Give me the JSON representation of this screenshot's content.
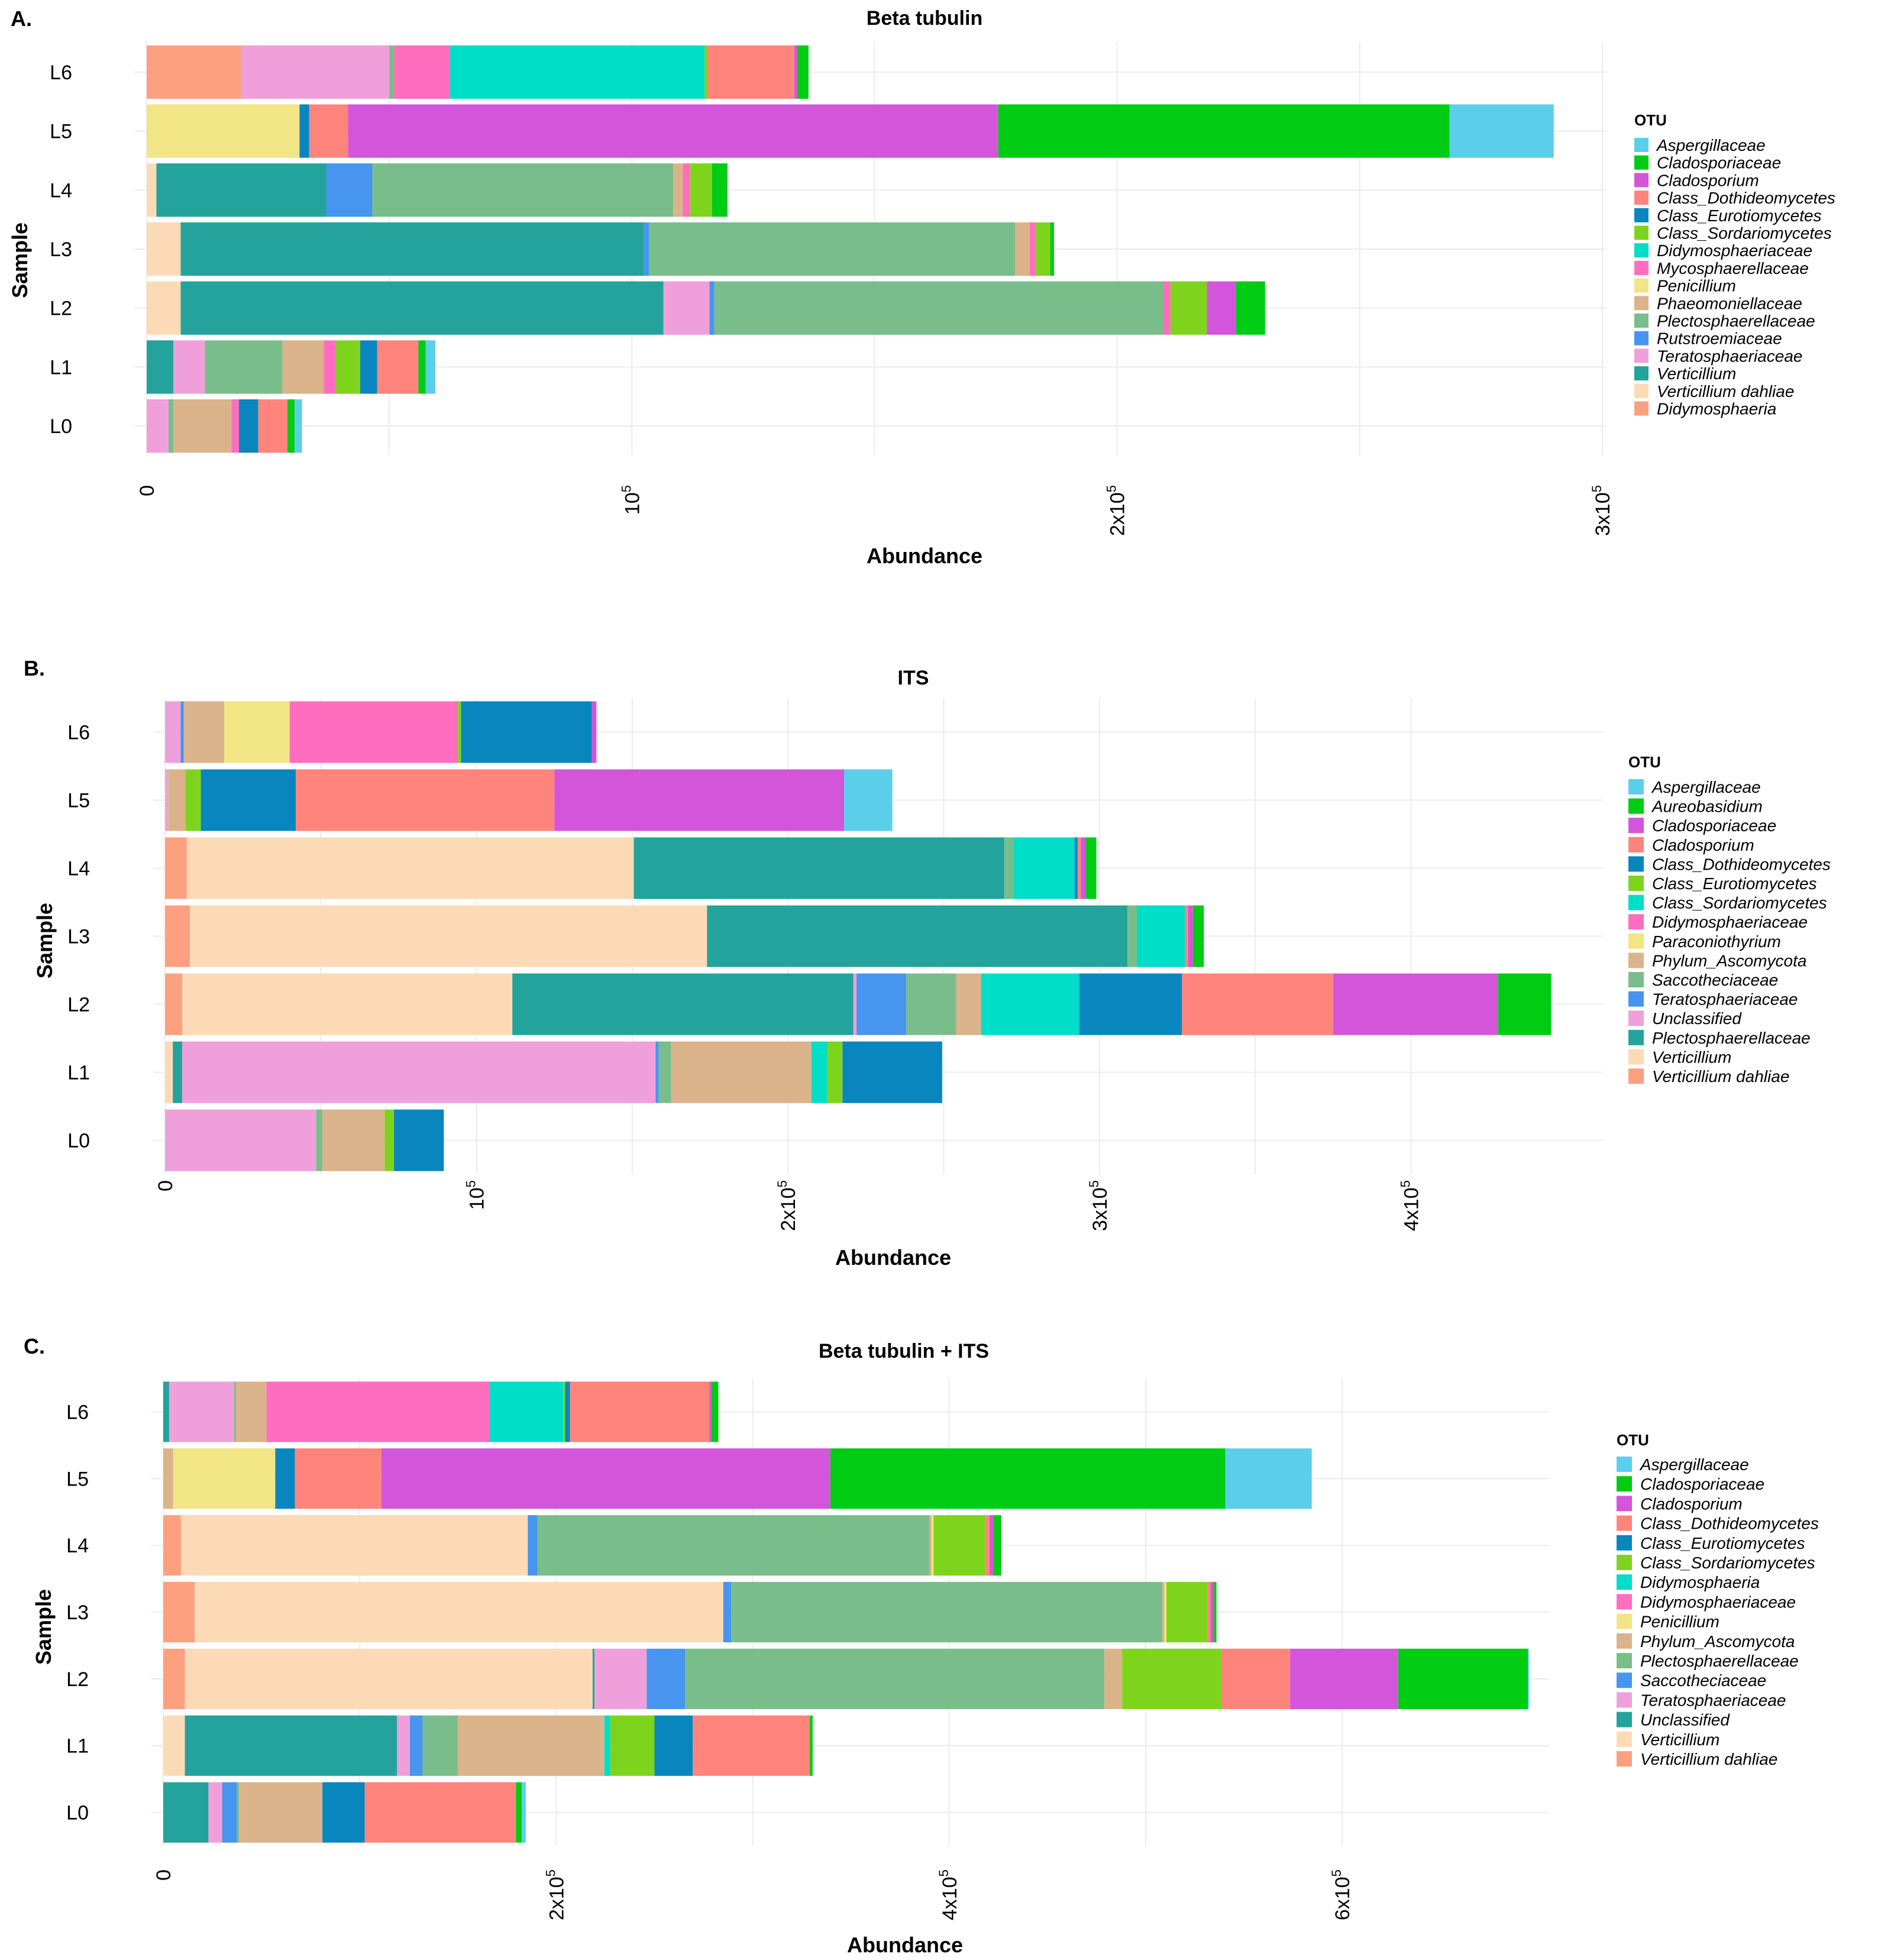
{
  "figure": {
    "panels": [
      {
        "letter": "A."
      },
      {
        "letter": "B."
      },
      {
        "letter": "C."
      }
    ]
  },
  "chart_data": [
    {
      "type": "bar",
      "orientation": "horizontal",
      "stacked": true,
      "title": "Beta tubulin",
      "xlabel": "Abundance",
      "ylabel": "Sample",
      "xlim": [
        0,
        300000
      ],
      "xticks": [
        {
          "value": 0,
          "label": "0",
          "exp": ""
        },
        {
          "value": 100000,
          "label": "10",
          "exp": "5"
        },
        {
          "value": 200000,
          "label": "2x10",
          "exp": "5"
        },
        {
          "value": 300000,
          "label": "3x10",
          "exp": "5"
        }
      ],
      "categories": [
        "L6",
        "L5",
        "L4",
        "L3",
        "L2",
        "L1",
        "L0"
      ],
      "legend_title": "OTU",
      "legend_position": "right",
      "series": [
        {
          "name": "Aspergillaceae",
          "color": "#5BCFEA",
          "values": [
            0,
            21500,
            0,
            0,
            0,
            2000,
            1500
          ]
        },
        {
          "name": "Cladosporiaceae",
          "color": "#00CC14",
          "values": [
            2300,
            93000,
            3200,
            800,
            6000,
            1500,
            1500
          ]
        },
        {
          "name": "Cladosporium",
          "color": "#D355DA",
          "values": [
            600,
            134000,
            0,
            0,
            6000,
            0,
            0
          ]
        },
        {
          "name": "Class_Dothideomycetes",
          "color": "#FF847C",
          "values": [
            18000,
            8000,
            0,
            0,
            0,
            8500,
            6000
          ]
        },
        {
          "name": "Class_Eurotiomycetes",
          "color": "#0A86BE",
          "values": [
            0,
            2000,
            0,
            0,
            0,
            3500,
            4000
          ]
        },
        {
          "name": "Class_Sordariomycetes",
          "color": "#7ED41C",
          "values": [
            500,
            0,
            4500,
            3000,
            7500,
            5000,
            0
          ]
        },
        {
          "name": "Didymosphaeriaceae",
          "color": "#00DDC8",
          "values": [
            52500,
            0,
            0,
            0,
            0,
            0,
            0
          ]
        },
        {
          "name": "Mycosphaerellaceae",
          "color": "#FF6EBE",
          "values": [
            11500,
            0,
            1500,
            1200,
            1500,
            2500,
            1500
          ]
        },
        {
          "name": "Penicillium",
          "color": "#F1E585",
          "values": [
            0,
            31500,
            0,
            0,
            0,
            0,
            0
          ]
        },
        {
          "name": "Phaeomoniellaceae",
          "color": "#DBB38A",
          "values": [
            0,
            0,
            2000,
            3000,
            0,
            8500,
            12000
          ]
        },
        {
          "name": "Plectosphaerellaceae",
          "color": "#79BE8A",
          "values": [
            1000,
            0,
            62000,
            75500,
            92500,
            16000,
            1000
          ]
        },
        {
          "name": "Rutstroemiaceae",
          "color": "#4795EE",
          "values": [
            0,
            0,
            9500,
            1000,
            1000,
            0,
            0
          ]
        },
        {
          "name": "Teratosphaeriaceae",
          "color": "#EFA0DA",
          "values": [
            30500,
            0,
            0,
            0,
            9500,
            6500,
            4500
          ]
        },
        {
          "name": "Verticillium",
          "color": "#24A39D",
          "values": [
            0,
            0,
            35000,
            95500,
            99500,
            5500,
            0
          ]
        },
        {
          "name": "Verticillium dahliae",
          "color": "#FDDAB6",
          "values": [
            0,
            0,
            2000,
            7000,
            7000,
            0,
            0
          ]
        },
        {
          "name": "Didymosphaeria",
          "color": "#FDA07F",
          "values": [
            19500,
            0,
            0,
            0,
            0,
            0,
            0
          ]
        }
      ]
    },
    {
      "type": "bar",
      "orientation": "horizontal",
      "stacked": true,
      "title": "ITS",
      "xlabel": "Abundance",
      "ylabel": "Sample",
      "xlim": [
        0,
        450000
      ],
      "xticks": [
        {
          "value": 0,
          "label": "0",
          "exp": ""
        },
        {
          "value": 100000,
          "label": "10",
          "exp": "5"
        },
        {
          "value": 200000,
          "label": "2x10",
          "exp": "5"
        },
        {
          "value": 300000,
          "label": "3x10",
          "exp": "5"
        },
        {
          "value": 400000,
          "label": "4x10",
          "exp": "5"
        }
      ],
      "categories": [
        "L6",
        "L5",
        "L4",
        "L3",
        "L2",
        "L1",
        "L0"
      ],
      "legend_title": "OTU",
      "legend_position": "right",
      "series": [
        {
          "name": "Aspergillaceae",
          "color": "#5BCFEA",
          "values": [
            0,
            15500,
            0,
            0,
            0,
            0,
            0
          ]
        },
        {
          "name": "Aureobasidium",
          "color": "#00CC14",
          "values": [
            0,
            0,
            3500,
            3500,
            17000,
            0,
            0
          ]
        },
        {
          "name": "Cladosporiaceae",
          "color": "#D355DA",
          "values": [
            1500,
            93000,
            1500,
            1500,
            53000,
            0,
            0
          ]
        },
        {
          "name": "Cladosporium",
          "color": "#FF847C",
          "values": [
            0,
            83000,
            1000,
            1000,
            48500,
            0,
            0
          ]
        },
        {
          "name": "Class_Dothideomycetes",
          "color": "#0A86BE",
          "values": [
            42000,
            30500,
            1000,
            0,
            33000,
            32000,
            16000
          ]
        },
        {
          "name": "Class_Eurotiomycetes",
          "color": "#7ED41C",
          "values": [
            1000,
            5000,
            0,
            0,
            0,
            5000,
            3000
          ]
        },
        {
          "name": "Class_Sordariomycetes",
          "color": "#00DDC8",
          "values": [
            0,
            0,
            19500,
            15500,
            31500,
            5000,
            0
          ]
        },
        {
          "name": "Didymosphaeriaceae",
          "color": "#FF6EBE",
          "values": [
            54000,
            0,
            0,
            0,
            0,
            0,
            0
          ]
        },
        {
          "name": "Paraconiothyrium",
          "color": "#F1E585",
          "values": [
            21000,
            0,
            0,
            0,
            0,
            0,
            0
          ]
        },
        {
          "name": "Phylum_Ascomycota",
          "color": "#DBB38A",
          "values": [
            13000,
            5500,
            0,
            0,
            8000,
            45000,
            20000
          ]
        },
        {
          "name": "Saccotheciaceae",
          "color": "#79BE8A",
          "values": [
            0,
            0,
            3000,
            3000,
            16000,
            4000,
            2000
          ]
        },
        {
          "name": "Teratosphaeriaceae",
          "color": "#4795EE",
          "values": [
            1000,
            0,
            0,
            0,
            16000,
            1000,
            0
          ]
        },
        {
          "name": "Unclassified",
          "color": "#EFA0DA",
          "values": [
            5000,
            1000,
            0,
            0,
            1000,
            152000,
            48500
          ]
        },
        {
          "name": "Plectosphaerellaceae",
          "color": "#24A39D",
          "values": [
            0,
            0,
            119000,
            135000,
            109500,
            3000,
            0
          ]
        },
        {
          "name": "Verticillium",
          "color": "#FDDAB6",
          "values": [
            0,
            0,
            143500,
            166000,
            106000,
            2500,
            0
          ]
        },
        {
          "name": "Verticillium dahliae",
          "color": "#FDA07F",
          "values": [
            0,
            0,
            7000,
            8000,
            5500,
            0,
            0
          ]
        }
      ]
    },
    {
      "type": "bar",
      "orientation": "horizontal",
      "stacked": true,
      "title": "Beta tubulin + ITS",
      "xlabel": "Abundance",
      "ylabel": "Sample",
      "xlim": [
        0,
        700000
      ],
      "xticks": [
        {
          "value": 0,
          "label": "0",
          "exp": ""
        },
        {
          "value": 200000,
          "label": "2x10",
          "exp": "5"
        },
        {
          "value": 400000,
          "label": "4x10",
          "exp": "5"
        },
        {
          "value": 600000,
          "label": "6x10",
          "exp": "5"
        }
      ],
      "categories": [
        "L6",
        "L5",
        "L4",
        "L3",
        "L2",
        "L1",
        "L0"
      ],
      "legend_title": "OTU",
      "legend_position": "right",
      "series": [
        {
          "name": "Aspergillaceae",
          "color": "#5BCFEA",
          "values": [
            0,
            44000,
            0,
            0,
            500,
            0,
            2000
          ]
        },
        {
          "name": "Cladosporiaceae",
          "color": "#00CC14",
          "values": [
            3500,
            201000,
            4000,
            1500,
            66000,
            1500,
            3000
          ]
        },
        {
          "name": "Cladosporium",
          "color": "#D355DA",
          "values": [
            1000,
            228500,
            2000,
            1500,
            55000,
            0,
            0
          ]
        },
        {
          "name": "Class_Dothideomycetes",
          "color": "#FF847C",
          "values": [
            71000,
            44000,
            2000,
            1500,
            35000,
            59500,
            77000
          ]
        },
        {
          "name": "Class_Eurotiomycetes",
          "color": "#0A86BE",
          "values": [
            2500,
            10000,
            0,
            0,
            0,
            19500,
            21500
          ]
        },
        {
          "name": "Class_Sordariomycetes",
          "color": "#7ED41C",
          "values": [
            1000,
            0,
            26500,
            21000,
            50500,
            22500,
            0
          ]
        },
        {
          "name": "Didymosphaeria",
          "color": "#00DDC8",
          "values": [
            37500,
            0,
            0,
            0,
            0,
            3000,
            0
          ]
        },
        {
          "name": "Didymosphaeriaceae",
          "color": "#FF6EBE",
          "values": [
            113500,
            0,
            0,
            0,
            0,
            0,
            0
          ]
        },
        {
          "name": "Penicillium",
          "color": "#F1E585",
          "values": [
            0,
            52000,
            1000,
            1000,
            0,
            0,
            0
          ]
        },
        {
          "name": "Phylum_Ascomycota",
          "color": "#DBB38A",
          "values": [
            15500,
            5000,
            1000,
            1000,
            9000,
            74500,
            42500
          ]
        },
        {
          "name": "Plectosphaerellaceae",
          "color": "#79BE8A",
          "values": [
            1000,
            0,
            199500,
            219500,
            213500,
            18000,
            1000
          ]
        },
        {
          "name": "Saccotheciaceae",
          "color": "#4795EE",
          "values": [
            0,
            0,
            5000,
            4000,
            19500,
            6500,
            7500
          ]
        },
        {
          "name": "Teratosphaeriaceae",
          "color": "#EFA0DA",
          "values": [
            33000,
            0,
            0,
            0,
            26500,
            6500,
            7000
          ]
        },
        {
          "name": "Unclassified",
          "color": "#24A39D",
          "values": [
            3000,
            0,
            0,
            0,
            1000,
            108000,
            23000
          ]
        },
        {
          "name": "Verticillium",
          "color": "#FDDAB6",
          "values": [
            0,
            0,
            176500,
            269000,
            207500,
            11000,
            0
          ]
        },
        {
          "name": "Verticillium dahliae",
          "color": "#FDA07F",
          "values": [
            0,
            0,
            9000,
            16000,
            11000,
            0,
            0
          ]
        }
      ]
    }
  ]
}
